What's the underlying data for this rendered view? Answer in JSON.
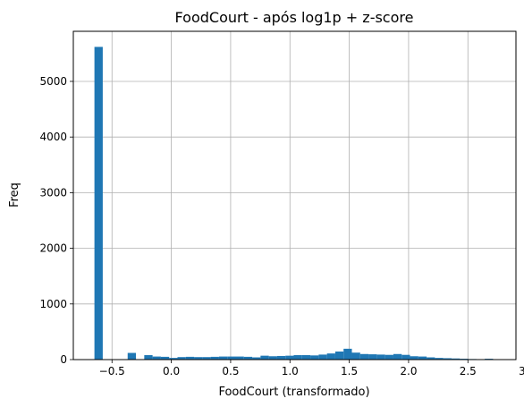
{
  "chart_data": {
    "type": "bar",
    "title": "FoodCourt - após log1p + z-score",
    "xlabel": "FoodCourt (transformado)",
    "ylabel": "Freq",
    "xlim": [
      -0.826,
      2.905
    ],
    "ylim": [
      0,
      5900
    ],
    "grid": true,
    "bar_color": "#1f77b4",
    "x_ticks": [
      -0.5,
      0.0,
      0.5,
      1.0,
      1.5,
      2.0,
      2.5,
      3.0
    ],
    "x_tick_labels": [
      "−0.5",
      "0.0",
      "0.5",
      "1.0",
      "1.5",
      "2.0",
      "2.5",
      "3.0"
    ],
    "y_ticks": [
      0,
      1000,
      2000,
      3000,
      4000,
      5000
    ],
    "y_tick_labels": [
      "0",
      "1000",
      "2000",
      "3000",
      "4000",
      "5000"
    ],
    "bin_start": -0.648,
    "bin_width": 0.07,
    "values": [
      5620,
      0,
      0,
      0,
      120,
      0,
      80,
      55,
      50,
      30,
      45,
      50,
      45,
      45,
      50,
      55,
      55,
      55,
      50,
      40,
      70,
      60,
      65,
      70,
      80,
      80,
      75,
      90,
      110,
      145,
      195,
      125,
      100,
      95,
      90,
      85,
      100,
      85,
      60,
      55,
      40,
      30,
      25,
      20,
      15,
      10,
      5,
      15,
      2
    ]
  }
}
